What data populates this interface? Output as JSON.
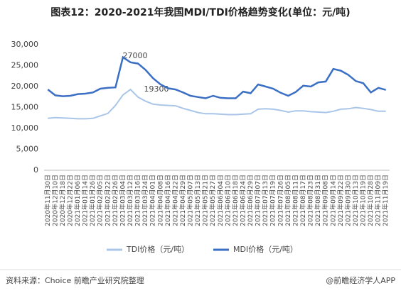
{
  "chart_data": {
    "type": "line",
    "title": "图表12：2020-2021年我国MDI/TDI价格趋势变化(单位：元/吨)",
    "categories": [
      "2020年11月30日",
      "2020年12月10日",
      "2020年12月18日",
      "2020年12月22日",
      "2021年01月06日",
      "2021年01月14日",
      "2021年01月26日",
      "2021年02月05日",
      "2021年02月22日",
      "2021年02月26日",
      "2021年03月04日",
      "2021年03月12日",
      "2021年03月16日",
      "2021年03月24日",
      "2021年04月01日",
      "2021年04月08日",
      "2021年04月16日",
      "2021年04月22日",
      "2021年04月29日",
      "2021年05月07日",
      "2021年05月13日",
      "2021年05月21日",
      "2021年05月27日",
      "2021年06月04日",
      "2021年06月10日",
      "2021年06月18日",
      "2021年06月24日",
      "2021年06月29日",
      "2021年07月07日",
      "2021年07月13日",
      "2021年07月19日",
      "2021年07月26日",
      "2021年08月05日",
      "2021年08月11日",
      "2021年08月17日",
      "2021年08月23日",
      "2021年08月31日",
      "2021年09月08日",
      "2021年09月14日",
      "2021年09月22日",
      "2021年09月30日",
      "2021年10月13日",
      "2021年10月19日",
      "2021年10月28日",
      "2021年11月09日",
      "2021年11月19日"
    ],
    "series": [
      {
        "name": "TDI价格（元/吨）",
        "color": "#a9c6e8",
        "values": [
          12400,
          12600,
          12500,
          12400,
          12300,
          12300,
          12400,
          13000,
          13600,
          15500,
          18000,
          19300,
          17500,
          16500,
          15800,
          15600,
          15500,
          15400,
          14800,
          14300,
          13800,
          13500,
          13500,
          13400,
          13300,
          13300,
          13400,
          13500,
          14600,
          14700,
          14600,
          14300,
          13900,
          14200,
          14200,
          14000,
          13900,
          13800,
          14100,
          14600,
          14700,
          15000,
          14800,
          14500,
          14100,
          14100
        ]
      },
      {
        "name": "MDI价格（元/吨）",
        "color": "#3a6fc4",
        "values": [
          19300,
          17900,
          17700,
          17800,
          18200,
          18300,
          18600,
          19500,
          19700,
          19800,
          27000,
          25800,
          25500,
          24000,
          22000,
          20500,
          19600,
          19300,
          18600,
          17800,
          17500,
          17200,
          17800,
          17300,
          17200,
          17200,
          18800,
          18400,
          20500,
          20000,
          19500,
          18500,
          17800,
          18700,
          20200,
          20000,
          21000,
          21200,
          24200,
          23800,
          22800,
          21300,
          20800,
          18600,
          19700,
          19200
        ]
      }
    ],
    "annotations": [
      "27000",
      "19300"
    ],
    "ylim": [
      0,
      30000
    ],
    "yticks": [
      0,
      {
        "value": 5000,
        "label": "5,000"
      },
      {
        "value": 10000,
        "label": "10,000"
      },
      {
        "value": 15000,
        "label": "15,000"
      },
      {
        "value": 20000,
        "label": "20,000"
      },
      {
        "value": 25000,
        "label": "25,000"
      },
      {
        "value": 30000,
        "label": "30,000"
      }
    ],
    "grid": false,
    "legend": "bottom",
    "source": "资料来源：Choice 前瞻产业研究院整理",
    "credit": "@前瞻经济学人APP"
  }
}
